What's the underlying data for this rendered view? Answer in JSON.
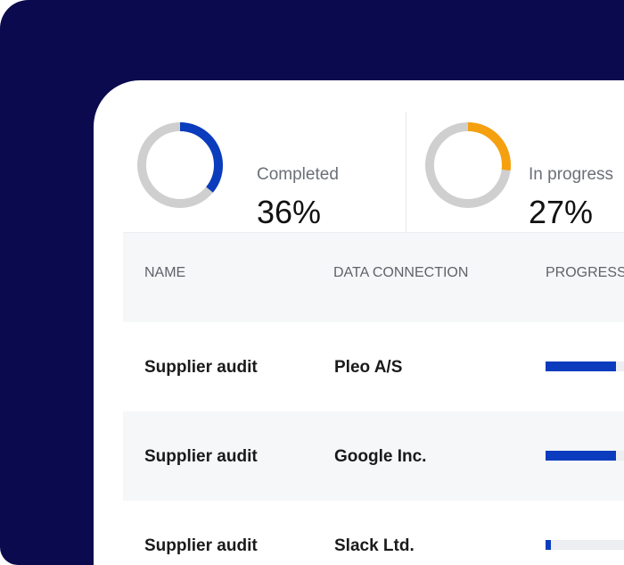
{
  "colors": {
    "background": "#0b0a4e",
    "accent_blue": "#0a3cbd",
    "accent_orange": "#f5a00f",
    "ring_track": "#cfcfcf"
  },
  "stats": [
    {
      "label": "Completed",
      "value": "36%",
      "percent": 36,
      "color": "#0a3cbd"
    },
    {
      "label": "In progress",
      "value": "27%",
      "percent": 27,
      "color": "#f5a00f"
    }
  ],
  "table": {
    "headers": {
      "name": "NAME",
      "connection": "DATA CONNECTION",
      "progress": "PROGRESS"
    },
    "rows": [
      {
        "name": "Supplier audit",
        "connection": "Pleo A/S",
        "progress": 0.9
      },
      {
        "name": "Supplier audit",
        "connection": "Google Inc.",
        "progress": 0.9
      },
      {
        "name": "Supplier audit",
        "connection": "Slack Ltd.",
        "progress": 0.07
      }
    ]
  }
}
